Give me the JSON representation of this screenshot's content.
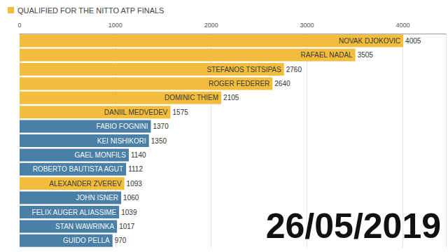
{
  "chart_data": {
    "type": "bar",
    "orientation": "horizontal",
    "categories": [
      "NOVAK DJOKOVIC",
      "RAFAEL NADAL",
      "STEFANOS TSITSIPAS",
      "ROGER FEDERER",
      "DOMINIC THIEM",
      "DANIIL MEDVEDEV",
      "FABIO FOGNINI",
      "KEI NISHIKORI",
      "GAEL MONFILS",
      "ROBERTO BAUTISTA AGUT",
      "ALEXANDER ZVEREV",
      "JOHN ISNER",
      "FELIX AUGER ALIASSIME",
      "STAN WAWRINKA",
      "GUIDO PELLA"
    ],
    "series": [
      {
        "name": "QUALIFIED FOR THE NITTO ATP FINALS",
        "color": "#f2bd3c",
        "values": [
          4005,
          3505,
          2760,
          2640,
          2105,
          1575,
          1370,
          1350,
          1140,
          1112,
          1093,
          1060,
          1039,
          1017,
          970
        ],
        "colors": [
          "#f2bd3c",
          "#f2bd3c",
          "#f2bd3c",
          "#f2bd3c",
          "#f2bd3c",
          "#f2bd3c",
          "#4a80a6",
          "#4a80a6",
          "#4a80a6",
          "#4a80a6",
          "#f2bd3c",
          "#4a80a6",
          "#4a80a6",
          "#4a80a6",
          "#4a80a6"
        ]
      }
    ],
    "xlim": [
      0,
      4450
    ],
    "xticks": [
      0,
      1000,
      2000,
      3000,
      4000
    ],
    "grid": true,
    "legend": "top-left",
    "data_labels": true,
    "tick_labels": "x",
    "annotation": "26/05/2019"
  }
}
